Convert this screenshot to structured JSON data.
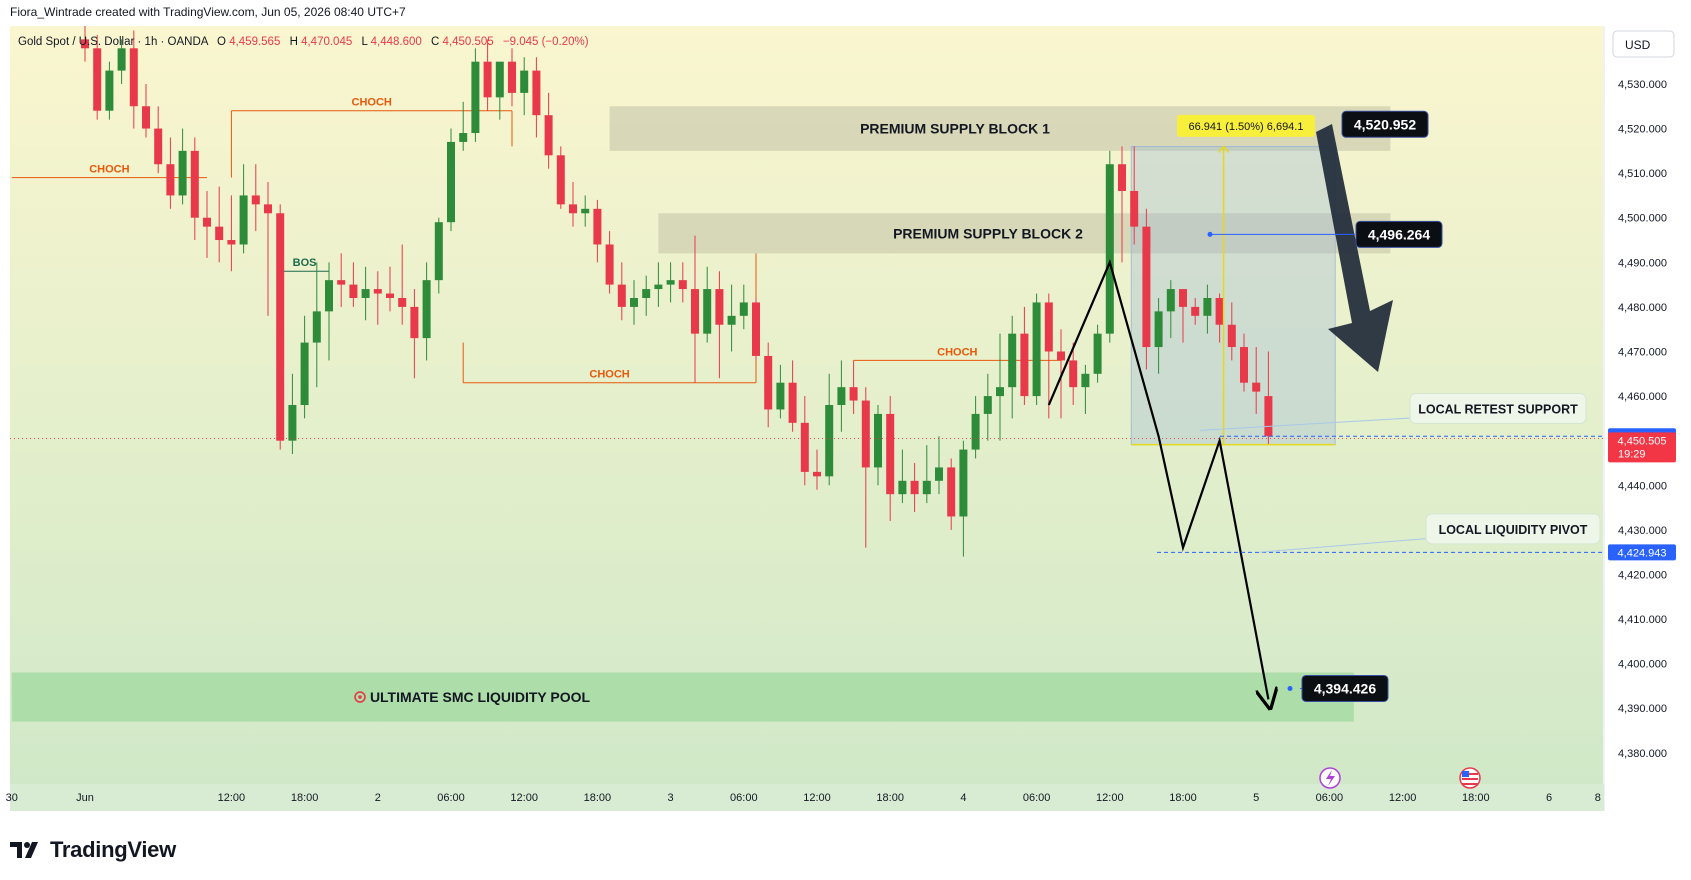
{
  "header": {
    "attribution": "Fiora_Wintrade created with TradingView.com, Jun 05, 2026 08:40 UTC+7"
  },
  "symbol_bar": {
    "symbol": "Gold Spot / U.S. Dollar · 1h · OANDA",
    "open_label": "O",
    "open": "4,459.565",
    "high_label": "H",
    "high": "4,470.045",
    "low_label": "L",
    "low": "4,448.600",
    "close_label": "C",
    "close": "4,450.505",
    "change": "−9.045 (−0.20%)"
  },
  "currency_button": "USD",
  "footer": {
    "brand": "TradingView"
  },
  "colors": {
    "bull": "#2e8b3a",
    "bear": "#e8394a",
    "choch": "#e8590c",
    "bos": "#1e6b4f",
    "bg_top": "#faf6cf",
    "bg_bottom": "#cfe8c8",
    "pool": "#a8dca4",
    "zone": "#cfcfb0",
    "measure": "#f7ef3a",
    "blue": "#2962ff",
    "dark_label": "#0b0f14",
    "red_label": "#f23645"
  },
  "chart_data": {
    "type": "candlestick",
    "ylim": [
      4373,
      4543
    ],
    "yticks": [
      4530,
      4520,
      4510,
      4500,
      4490,
      4480,
      4470,
      4460,
      4440,
      4430,
      4420,
      4410,
      4400,
      4390,
      4380
    ],
    "ytick_labels": [
      "4,530.000",
      "4,520.000",
      "4,510.000",
      "4,500.000",
      "4,490.000",
      "4,480.000",
      "4,470.000",
      "4,460.000",
      "4,440.000",
      "4,430.000",
      "4,420.000",
      "4,410.000",
      "4,400.000",
      "4,390.000",
      "4,380.000"
    ],
    "xlabels": [
      {
        "bar": -6,
        "label": "30"
      },
      {
        "bar": 0,
        "label": "Jun"
      },
      {
        "bar": 12,
        "label": "12:00"
      },
      {
        "bar": 18,
        "label": "18:00"
      },
      {
        "bar": 24,
        "label": "2"
      },
      {
        "bar": 30,
        "label": "06:00"
      },
      {
        "bar": 36,
        "label": "12:00"
      },
      {
        "bar": 42,
        "label": "18:00"
      },
      {
        "bar": 48,
        "label": "3"
      },
      {
        "bar": 54,
        "label": "06:00"
      },
      {
        "bar": 60,
        "label": "12:00"
      },
      {
        "bar": 66,
        "label": "18:00"
      },
      {
        "bar": 72,
        "label": "4"
      },
      {
        "bar": 78,
        "label": "06:00"
      },
      {
        "bar": 84,
        "label": "12:00"
      },
      {
        "bar": 90,
        "label": "18:00"
      },
      {
        "bar": 96,
        "label": "5"
      },
      {
        "bar": 102,
        "label": "06:00"
      },
      {
        "bar": 108,
        "label": "12:00"
      },
      {
        "bar": 114,
        "label": "18:00"
      },
      {
        "bar": 120,
        "label": "6"
      },
      {
        "bar": 124,
        "label": "8"
      }
    ],
    "candles": [
      [
        4540,
        4543,
        4535,
        4538
      ],
      [
        4538,
        4541,
        4522,
        4524
      ],
      [
        4524,
        4535,
        4522,
        4533
      ],
      [
        4533,
        4540,
        4530,
        4538
      ],
      [
        4538,
        4542,
        4520,
        4525
      ],
      [
        4525,
        4530,
        4518,
        4520
      ],
      [
        4520,
        4525,
        4510,
        4512
      ],
      [
        4512,
        4518,
        4502,
        4505
      ],
      [
        4505,
        4520,
        4503,
        4515
      ],
      [
        4515,
        4518,
        4495,
        4500
      ],
      [
        4500,
        4506,
        4491,
        4498
      ],
      [
        4498,
        4507,
        4490,
        4495
      ],
      [
        4495,
        4505,
        4488,
        4494
      ],
      [
        4494,
        4512,
        4492,
        4505
      ],
      [
        4505,
        4512,
        4497,
        4503
      ],
      [
        4503,
        4508,
        4478,
        4501
      ],
      [
        4501,
        4503,
        4448,
        4450
      ],
      [
        4450,
        4465,
        4447,
        4458
      ],
      [
        4458,
        4478,
        4455,
        4472
      ],
      [
        4472,
        4490,
        4462,
        4479
      ],
      [
        4479,
        4490,
        4468,
        4486
      ],
      [
        4486,
        4492,
        4480,
        4485
      ],
      [
        4485,
        4490,
        4480,
        4482
      ],
      [
        4482,
        4489,
        4477,
        4484
      ],
      [
        4484,
        4488,
        4476,
        4483
      ],
      [
        4483,
        4489,
        4479,
        4482
      ],
      [
        4482,
        4494,
        4476,
        4480
      ],
      [
        4480,
        4484,
        4464,
        4473
      ],
      [
        4473,
        4490,
        4468,
        4486
      ],
      [
        4486,
        4500,
        4483,
        4499
      ],
      [
        4499,
        4520,
        4497,
        4517
      ],
      [
        4517,
        4526,
        4515,
        4519
      ],
      [
        4519,
        4538,
        4517,
        4535
      ],
      [
        4535,
        4540,
        4524,
        4527
      ],
      [
        4527,
        4534,
        4522,
        4535
      ],
      [
        4535,
        4538,
        4525,
        4528
      ],
      [
        4528,
        4536,
        4523,
        4533
      ],
      [
        4533,
        4536,
        4518,
        4523
      ],
      [
        4523,
        4528,
        4511,
        4514
      ],
      [
        4514,
        4516,
        4502,
        4503
      ],
      [
        4503,
        4508,
        4498,
        4501
      ],
      [
        4501,
        4505,
        4498,
        4502
      ],
      [
        4502,
        4504,
        4490,
        4494
      ],
      [
        4494,
        4497,
        4483,
        4485
      ],
      [
        4485,
        4490,
        4477,
        4480
      ],
      [
        4480,
        4486,
        4476,
        4482
      ],
      [
        4482,
        4487,
        4478,
        4484
      ],
      [
        4484,
        4490,
        4480,
        4485
      ],
      [
        4485,
        4490,
        4481,
        4486
      ],
      [
        4486,
        4490,
        4481,
        4484
      ],
      [
        4484,
        4496,
        4463,
        4474
      ],
      [
        4474,
        4489,
        4472,
        4484
      ],
      [
        4484,
        4488,
        4464,
        4476
      ],
      [
        4476,
        4485,
        4470,
        4478
      ],
      [
        4478,
        4485,
        4475,
        4481
      ],
      [
        4481,
        4482,
        4468,
        4469
      ],
      [
        4469,
        4472,
        4453,
        4457
      ],
      [
        4457,
        4467,
        4455,
        4463
      ],
      [
        4463,
        4468,
        4452,
        4454
      ],
      [
        4454,
        4460,
        4440,
        4443
      ],
      [
        4443,
        4448,
        4439,
        4442
      ],
      [
        4442,
        4465,
        4440,
        4458
      ],
      [
        4458,
        4468,
        4452,
        4462
      ],
      [
        4462,
        4468,
        4456,
        4459
      ],
      [
        4459,
        4462,
        4426,
        4444
      ],
      [
        4444,
        4458,
        4440,
        4456
      ],
      [
        4456,
        4460,
        4432,
        4438
      ],
      [
        4438,
        4448,
        4436,
        4441
      ],
      [
        4441,
        4445,
        4434,
        4438
      ],
      [
        4438,
        4449,
        4436,
        4441
      ],
      [
        4441,
        4451,
        4438,
        4444
      ],
      [
        4444,
        4446,
        4430,
        4433
      ],
      [
        4433,
        4450,
        4424,
        4448
      ],
      [
        4448,
        4460,
        4446,
        4456
      ],
      [
        4456,
        4465,
        4450,
        4460
      ],
      [
        4460,
        4474,
        4450,
        4462
      ],
      [
        4462,
        4478,
        4455,
        4474
      ],
      [
        4474,
        4480,
        4458,
        4460
      ],
      [
        4460,
        4483,
        4458,
        4481
      ],
      [
        4481,
        4483,
        4455,
        4470
      ],
      [
        4470,
        4475,
        4455,
        4468
      ],
      [
        4468,
        4472,
        4458,
        4462
      ],
      [
        4462,
        4467,
        4456,
        4465
      ],
      [
        4465,
        4476,
        4463,
        4474
      ],
      [
        4474,
        4515,
        4472,
        4512
      ],
      [
        4512,
        4516,
        4490,
        4506
      ],
      [
        4506,
        4516,
        4494,
        4498
      ],
      [
        4498,
        4502,
        4466,
        4471
      ],
      [
        4471,
        4482,
        4465,
        4479
      ],
      [
        4479,
        4486,
        4473,
        4484
      ],
      [
        4484,
        4484,
        4472,
        4480
      ],
      [
        4480,
        4482,
        4476,
        4478
      ],
      [
        4478,
        4485,
        4474,
        4482
      ],
      [
        4482,
        4483,
        4472,
        4476
      ],
      [
        4476,
        4481,
        4468,
        4471
      ],
      [
        4471,
        4474,
        4461,
        4463
      ],
      [
        4463,
        4471,
        4456,
        4461
      ],
      [
        4460,
        4470,
        4449,
        4451
      ]
    ],
    "annotations": {
      "zones": [
        {
          "label": "PREMIUM SUPPLY BLOCK 1",
          "from_bar": 43,
          "to_bar": 107,
          "top": 4525,
          "bottom": 4515
        },
        {
          "label": "PREMIUM SUPPLY BLOCK 2",
          "from_bar": 47,
          "to_bar": 107,
          "top": 4501,
          "bottom": 4492
        },
        {
          "label": "ULTIMATE SMC LIQUIDITY POOL",
          "from_bar": -6,
          "to_bar": 104,
          "top": 4398,
          "bottom": 4387
        }
      ],
      "structure_lines": [
        {
          "label": "CHOCH",
          "from_bar": -6,
          "to_bar": 10,
          "price": 4509,
          "type": "choch"
        },
        {
          "label": "CHOCH",
          "from_bar": 12,
          "to_bar": 35,
          "price": 4524,
          "type": "choch"
        },
        {
          "label": "BOS",
          "from_bar": 16,
          "to_bar": 20,
          "price": 4488,
          "type": "bos"
        },
        {
          "label": "CHOCH",
          "from_bar": 31,
          "to_bar": 55,
          "price": 4463,
          "type": "choch"
        },
        {
          "label": "CHOCH",
          "from_bar": 63,
          "to_bar": 80,
          "price": 4468,
          "type": "choch"
        }
      ],
      "measure": {
        "label": "66.941 (1.50%) 6,694.1",
        "from_bar": 86,
        "to_bar": 101,
        "top": 4516,
        "bottom": 4449.1
      },
      "projection_path": [
        [
          79,
          4458
        ],
        [
          84,
          4490
        ],
        [
          88,
          4451
        ],
        [
          90,
          4426
        ],
        [
          93,
          4450
        ],
        [
          97,
          4392
        ]
      ],
      "callouts": [
        {
          "label": "LOCAL RETEST SUPPORT",
          "price": 4457
        },
        {
          "label": "LOCAL LIQUIDITY PIVOT",
          "price": 4430
        }
      ],
      "price_tags": [
        {
          "value": "4,520.952",
          "price": 4520.952
        },
        {
          "value": "4,496.264",
          "price": 4496.264
        },
        {
          "value": "4,394.426",
          "price": 4394.426
        }
      ],
      "axis_tags": [
        {
          "value": "4,451.003",
          "price": 4451.003,
          "style": "blue"
        },
        {
          "value": "4,450.505",
          "price": 4450.505,
          "style": "red",
          "sub": "19:29"
        },
        {
          "value": "4,424.943",
          "price": 4424.943,
          "style": "blue"
        }
      ]
    }
  }
}
